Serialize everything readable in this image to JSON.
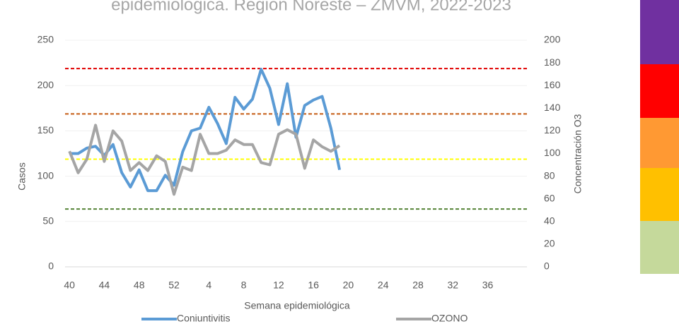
{
  "chart_data": {
    "type": "line",
    "title": "epidemiológica. Región Noreste – ZMVM, 2022-2023",
    "x_label": "Semana epidemiológica",
    "y_label": "Casos",
    "y2_label": "Concentración O3",
    "categories": [
      "40",
      null,
      null,
      null,
      "44",
      null,
      null,
      null,
      "48",
      null,
      null,
      null,
      "52",
      null,
      null,
      null,
      "4",
      null,
      null,
      null,
      "8",
      null,
      null,
      null,
      "12",
      null,
      null,
      null,
      "16",
      null,
      null,
      null,
      "20",
      null,
      null,
      null,
      "24",
      null,
      null,
      null,
      "28",
      null,
      null,
      null,
      "32",
      null,
      null,
      null,
      "36",
      null,
      null,
      null,
      null
    ],
    "ylim": [
      0,
      250
    ],
    "yticks": [
      0,
      50,
      100,
      150,
      200,
      250
    ],
    "y2lim": [
      0,
      200
    ],
    "y2ticks": [
      0,
      20,
      40,
      60,
      80,
      100,
      120,
      140,
      160,
      180,
      200
    ],
    "grid": true,
    "legend": "bottom",
    "series": [
      {
        "name": "Coniuntivitis",
        "color": "#5b9bd5",
        "values": [
          125,
          125,
          131,
          133,
          123,
          135,
          104,
          88,
          107,
          84,
          84,
          101,
          90,
          127,
          150,
          153,
          176,
          158,
          136,
          187,
          174,
          185,
          218,
          197,
          157,
          202,
          143,
          178,
          184,
          188,
          153,
          107,
          null,
          null,
          null,
          null,
          null,
          null,
          null,
          null,
          null,
          null,
          null,
          null,
          null,
          null,
          null,
          null,
          null,
          null,
          null,
          null,
          null
        ]
      },
      {
        "name": "OZONO",
        "color": "#a5a5a5",
        "axis": "y2",
        "values": [
          102,
          83,
          95,
          125,
          93,
          120,
          111,
          85,
          92,
          85,
          98,
          93,
          64,
          88,
          85,
          117,
          100,
          100,
          103,
          112,
          108,
          108,
          92,
          90,
          117,
          121,
          117,
          87,
          112,
          106,
          102,
          107,
          null,
          null,
          null,
          null,
          null,
          null,
          null,
          null,
          null,
          null,
          null,
          null,
          null,
          null,
          null,
          null,
          null,
          null,
          null,
          null,
          null
        ]
      }
    ],
    "reference_lines": [
      {
        "value": 175,
        "color": "#e00000",
        "axis": "y2"
      },
      {
        "value": 135,
        "color": "#c55a11",
        "axis": "y2"
      },
      {
        "value": 95,
        "color": "#ffff00",
        "axis": "y2"
      },
      {
        "value": 51,
        "color": "#548235",
        "axis": "y2"
      }
    ]
  }
}
